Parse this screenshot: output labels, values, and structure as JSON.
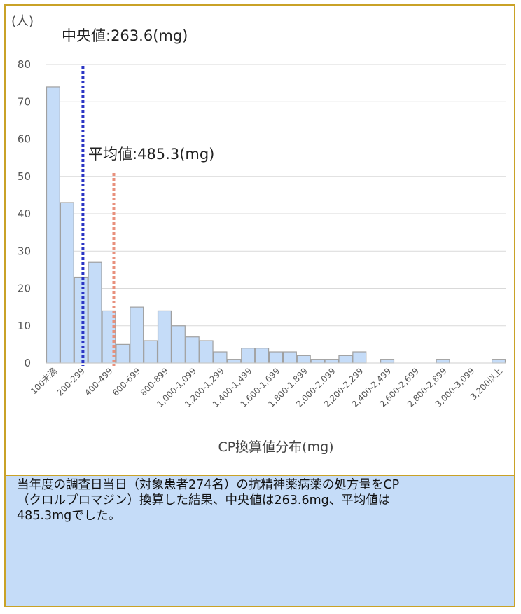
{
  "chart_data": {
    "type": "bar",
    "y_unit_label": "(人)",
    "xlabel": "CP換算値分布(mg)",
    "ylim": [
      0,
      80
    ],
    "y_ticks": [
      0,
      10,
      20,
      30,
      40,
      50,
      60,
      70,
      80
    ],
    "grid": true,
    "categories": [
      "100未満",
      "100-199",
      "200-299",
      "300-399",
      "400-499",
      "500-599",
      "600-699",
      "700-799",
      "800-899",
      "900-999",
      "1,000-1,099",
      "1,100-1,199",
      "1,200-1,299",
      "1,300-1,399",
      "1,400-1,499",
      "1,500-1,599",
      "1,600-1,699",
      "1,700-1,799",
      "1,800-1,899",
      "1,900-1,999",
      "2,000-2,099",
      "2,100-2,199",
      "2,200-2,299",
      "2,300-2,399",
      "2,400-2,499",
      "2,500-2,599",
      "2,600-2,699",
      "2,700-2,799",
      "2,800-2,899",
      "2,900-2,999",
      "3,000-3,099",
      "3,100-3,199",
      "3,200以上"
    ],
    "tick_labels_shown": [
      "100未満",
      "200-299",
      "400-499",
      "600-699",
      "800-899",
      "1,000-1,099",
      "1,200-1,299",
      "1,400-1,499",
      "1,600-1,699",
      "1,800-1,899",
      "2,000-2,099",
      "2,200-2,299",
      "2,400-2,499",
      "2,600-2,699",
      "2,800-2,899",
      "3,000-3,099",
      "3,200以上"
    ],
    "values": [
      74,
      43,
      23,
      27,
      14,
      5,
      15,
      6,
      14,
      10,
      7,
      6,
      3,
      1,
      4,
      4,
      3,
      3,
      2,
      1,
      1,
      2,
      3,
      0,
      1,
      0,
      0,
      0,
      1,
      0,
      0,
      0,
      1
    ],
    "bar_color": "#c5dcf8",
    "bar_edge_color": "#a0a0a0",
    "reference_lines": [
      {
        "label": "中央値:263.6(mg)",
        "value_mg": 263.6,
        "color": "#2b35c4"
      },
      {
        "label": "平均値:485.3(mg)",
        "value_mg": 485.3,
        "color": "#e8907c"
      }
    ]
  },
  "caption": {
    "text": "当年度の調査日当日（対象患者274名）の抗精神薬病薬の処方量をCP\n（クロルプロマジン）換算した結果、中央値は263.6mg、平均値は\n485.3mgでした。",
    "background": "#c5dcf8"
  },
  "frame_color": "#c9a227"
}
